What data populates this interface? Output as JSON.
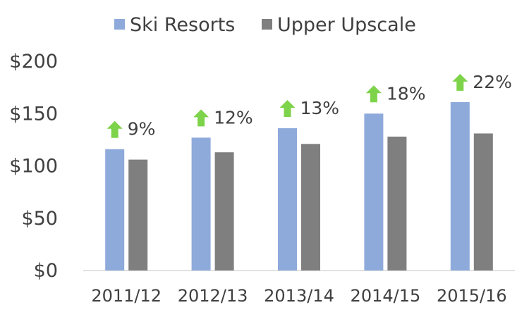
{
  "chart_data": {
    "type": "bar",
    "categories": [
      "2011/12",
      "2012/13",
      "2013/14",
      "2014/15",
      "2015/16"
    ],
    "series": [
      {
        "name": "Ski Resorts",
        "values": [
          116,
          127,
          136,
          150,
          161
        ],
        "color": "#8eaadb"
      },
      {
        "name": "Upper Upscale",
        "values": [
          106,
          113,
          121,
          128,
          131
        ],
        "color": "#7f7f7f"
      }
    ],
    "annotations": {
      "labels": [
        "9%",
        "12%",
        "13%",
        "18%",
        "22%"
      ],
      "icon": "up-arrow-icon",
      "color": "#7dd34a"
    },
    "y_ticks": [
      "$0",
      "$50",
      "$100",
      "$150",
      "$200"
    ],
    "ylim": [
      0,
      200
    ],
    "legend_position": "top",
    "grid": false
  }
}
